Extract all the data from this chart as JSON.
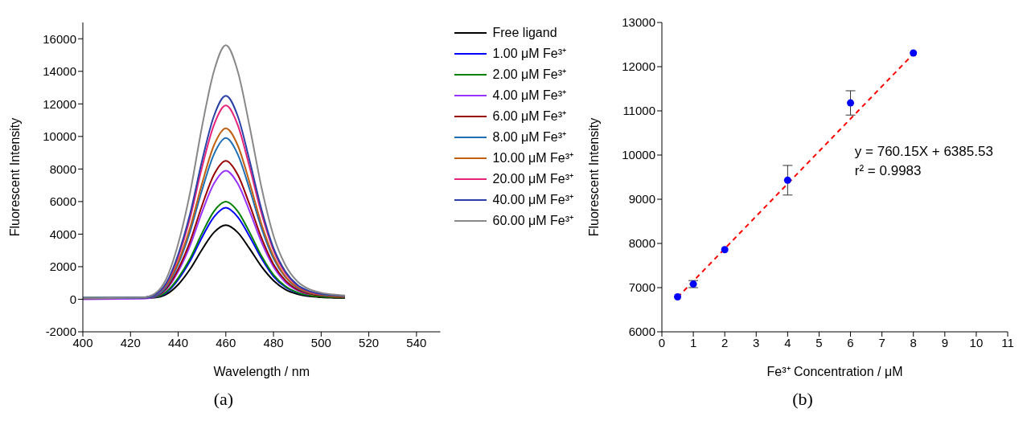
{
  "chart_data": [
    {
      "type": "line",
      "xlabel": "Wavelength / nm",
      "ylabel": "Fluorescent Intensity",
      "xlim": [
        400,
        550
      ],
      "xticks": [
        400,
        420,
        440,
        460,
        480,
        500,
        520,
        540
      ],
      "ylim": [
        -2000,
        17000
      ],
      "yticks": [
        -2000,
        0,
        2000,
        4000,
        6000,
        8000,
        10000,
        12000,
        14000,
        16000
      ],
      "legend": "top right",
      "annotations": [
        "(a)"
      ],
      "x": [
        400,
        425,
        430,
        435,
        440,
        445,
        450,
        455,
        460,
        465,
        470,
        475,
        480,
        485,
        490,
        495,
        500,
        505,
        510
      ],
      "series": [
        {
          "name": "Free ligand",
          "color": "#000000",
          "values": [
            80,
            90,
            100,
            300,
            900,
            1850,
            3050,
            4100,
            4550,
            4100,
            3100,
            2000,
            1150,
            600,
            320,
            180,
            120,
            90,
            70
          ]
        },
        {
          "name": "1.00 μM Fe³⁺",
          "color": "#0000ff",
          "values": [
            null,
            null,
            120,
            400,
            1200,
            2350,
            3800,
            5050,
            5620,
            5050,
            3850,
            2500,
            1400,
            750,
            400,
            230,
            null,
            null,
            null
          ]
        },
        {
          "name": "2.00 μM Fe³⁺",
          "color": "#008000",
          "values": [
            80,
            90,
            130,
            450,
            1300,
            2500,
            4050,
            5400,
            6000,
            5400,
            4100,
            2650,
            1500,
            800,
            420,
            240,
            160,
            120,
            100
          ]
        },
        {
          "name": "4.00 μM Fe³⁺",
          "color": "#9933ff",
          "values": [
            0,
            30,
            150,
            600,
            1700,
            3300,
            5350,
            7100,
            7900,
            7100,
            5400,
            3500,
            2000,
            1050,
            550,
            310,
            null,
            null,
            null
          ]
        },
        {
          "name": "6.00 μM Fe³⁺",
          "color": "#990000",
          "values": [
            50,
            80,
            170,
            650,
            1850,
            3550,
            5750,
            7650,
            8500,
            7650,
            5800,
            3750,
            2150,
            1150,
            600,
            340,
            220,
            160,
            130
          ]
        },
        {
          "name": "8.00 μM Fe³⁺",
          "color": "#1f6fb4",
          "values": [
            60,
            90,
            200,
            750,
            2150,
            4150,
            6700,
            8900,
            9900,
            8900,
            6750,
            4350,
            2500,
            1350,
            700,
            400,
            260,
            190,
            150
          ]
        },
        {
          "name": "10.00 μM Fe³⁺",
          "color": "#c06010",
          "values": [
            null,
            null,
            250,
            850,
            2300,
            4400,
            7100,
            9450,
            10500,
            9450,
            7150,
            4600,
            2650,
            1400,
            740,
            420,
            280,
            200,
            160
          ]
        },
        {
          "name": "20.00 μM Fe³⁺",
          "color": "#e6247a",
          "values": [
            null,
            90,
            260,
            950,
            2600,
            5000,
            8100,
            10700,
            11900,
            10700,
            8100,
            5250,
            3000,
            1600,
            840,
            480,
            310,
            null,
            null
          ]
        },
        {
          "name": "40.00 μM Fe³⁺",
          "color": "#2b3fa8",
          "values": [
            80,
            100,
            270,
            1000,
            2750,
            5250,
            8500,
            11250,
            12500,
            11250,
            8500,
            5500,
            3150,
            1700,
            880,
            500,
            330,
            240,
            190
          ]
        },
        {
          "name": "60.00 μM Fe³⁺",
          "color": "#888888",
          "values": [
            60,
            110,
            330,
            1250,
            3400,
            6550,
            10600,
            14000,
            15600,
            14000,
            10600,
            6850,
            3900,
            2100,
            1100,
            620,
            400,
            290,
            230
          ]
        }
      ]
    },
    {
      "type": "scatter",
      "xlabel": "Fe³⁺ Concentration / μM",
      "ylabel": "Fluorescent Intensity",
      "xlim": [
        0,
        11
      ],
      "xticks": [
        0,
        1,
        2,
        3,
        4,
        5,
        6,
        7,
        8,
        9,
        10,
        11
      ],
      "ylim": [
        6000,
        13000
      ],
      "yticks": [
        6000,
        7000,
        8000,
        9000,
        10000,
        11000,
        12000,
        13000
      ],
      "annotations": [
        "y = 760.15X + 6385.53",
        "r² = 0.9983",
        "(b)"
      ],
      "series": [
        {
          "color": "#0000ff",
          "marker": "circle",
          "x": [
            0.5,
            1,
            2,
            4,
            6,
            8
          ],
          "values": [
            6790,
            7080,
            7860,
            9430,
            11180,
            12310
          ],
          "errors": [
            null,
            80,
            null,
            335,
            275,
            null
          ]
        },
        {
          "type": "line",
          "color": "#ff0000",
          "line_style": "dashed",
          "x": [
            0.5,
            8
          ],
          "values": [
            6780,
            12290
          ]
        }
      ]
    }
  ]
}
